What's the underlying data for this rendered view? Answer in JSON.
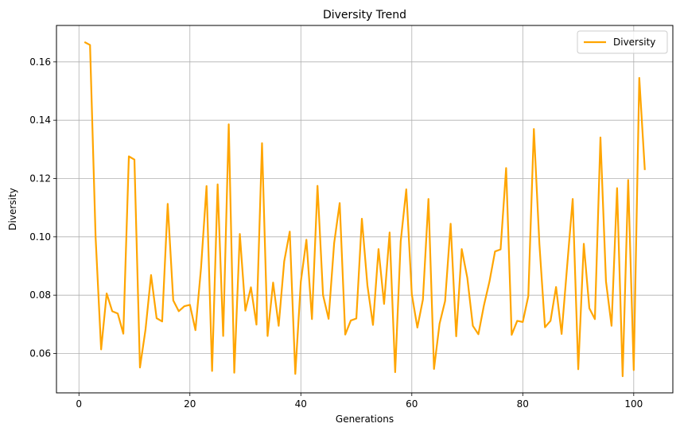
{
  "chart_data": {
    "type": "line",
    "title": "Diversity Trend",
    "xlabel": "Generations",
    "ylabel": "Diversity",
    "xlim": [
      -4.05,
      107.05
    ],
    "ylim": [
      0.0465,
      0.1725
    ],
    "x_ticks": [
      0,
      20,
      40,
      60,
      80,
      100
    ],
    "y_ticks": [
      0.06,
      0.08,
      0.1,
      0.12,
      0.14,
      0.16
    ],
    "x_tick_labels": [
      "0",
      "20",
      "40",
      "60",
      "80",
      "100"
    ],
    "y_tick_labels": [
      "0.06",
      "0.08",
      "0.10",
      "0.12",
      "0.14",
      "0.16"
    ],
    "grid": true,
    "legend_position": "top-right",
    "series": [
      {
        "name": "Diversity",
        "color": "#ffa500",
        "x": [
          1,
          2,
          3,
          4,
          5,
          6,
          7,
          8,
          9,
          10,
          11,
          12,
          13,
          14,
          15,
          16,
          17,
          18,
          19,
          20,
          21,
          22,
          23,
          24,
          25,
          26,
          27,
          28,
          29,
          30,
          31,
          32,
          33,
          34,
          35,
          36,
          37,
          38,
          39,
          40,
          41,
          42,
          43,
          44,
          45,
          46,
          47,
          48,
          49,
          50,
          51,
          52,
          53,
          54,
          55,
          56,
          57,
          58,
          59,
          60,
          61,
          62,
          63,
          64,
          65,
          66,
          67,
          68,
          69,
          70,
          71,
          72,
          73,
          74,
          75,
          76,
          77,
          78,
          79,
          80,
          81,
          82,
          83,
          84,
          85,
          86,
          87,
          88,
          89,
          90,
          91,
          92,
          93,
          94,
          95,
          96,
          97,
          98,
          99,
          100,
          101,
          102
        ],
        "values": [
          0.1668,
          0.1658,
          0.1,
          0.0614,
          0.0806,
          0.0745,
          0.0737,
          0.0668,
          0.1276,
          0.1265,
          0.0552,
          0.0682,
          0.0869,
          0.0721,
          0.071,
          0.1113,
          0.0782,
          0.0745,
          0.0762,
          0.0767,
          0.068,
          0.0892,
          0.1174,
          0.054,
          0.118,
          0.066,
          0.1386,
          0.0534,
          0.101,
          0.0747,
          0.0827,
          0.0699,
          0.1321,
          0.066,
          0.0843,
          0.0695,
          0.0916,
          0.1018,
          0.053,
          0.0847,
          0.099,
          0.0718,
          0.1175,
          0.08,
          0.0719,
          0.0978,
          0.1116,
          0.0665,
          0.0713,
          0.072,
          0.1062,
          0.0833,
          0.0698,
          0.0958,
          0.077,
          0.1015,
          0.0536,
          0.0985,
          0.1163,
          0.0803,
          0.0689,
          0.0785,
          0.113,
          0.0547,
          0.0702,
          0.078,
          0.1045,
          0.0659,
          0.0958,
          0.086,
          0.0695,
          0.0666,
          0.0765,
          0.0847,
          0.095,
          0.0957,
          0.1236,
          0.0664,
          0.0712,
          0.0708,
          0.0797,
          0.137,
          0.0975,
          0.069,
          0.0712,
          0.0828,
          0.0667,
          0.09,
          0.113,
          0.0546,
          0.0976,
          0.0755,
          0.0718,
          0.1341,
          0.0847,
          0.0695,
          0.1167,
          0.0522,
          0.1195,
          0.0543,
          0.1545,
          0.1229
        ]
      }
    ]
  }
}
